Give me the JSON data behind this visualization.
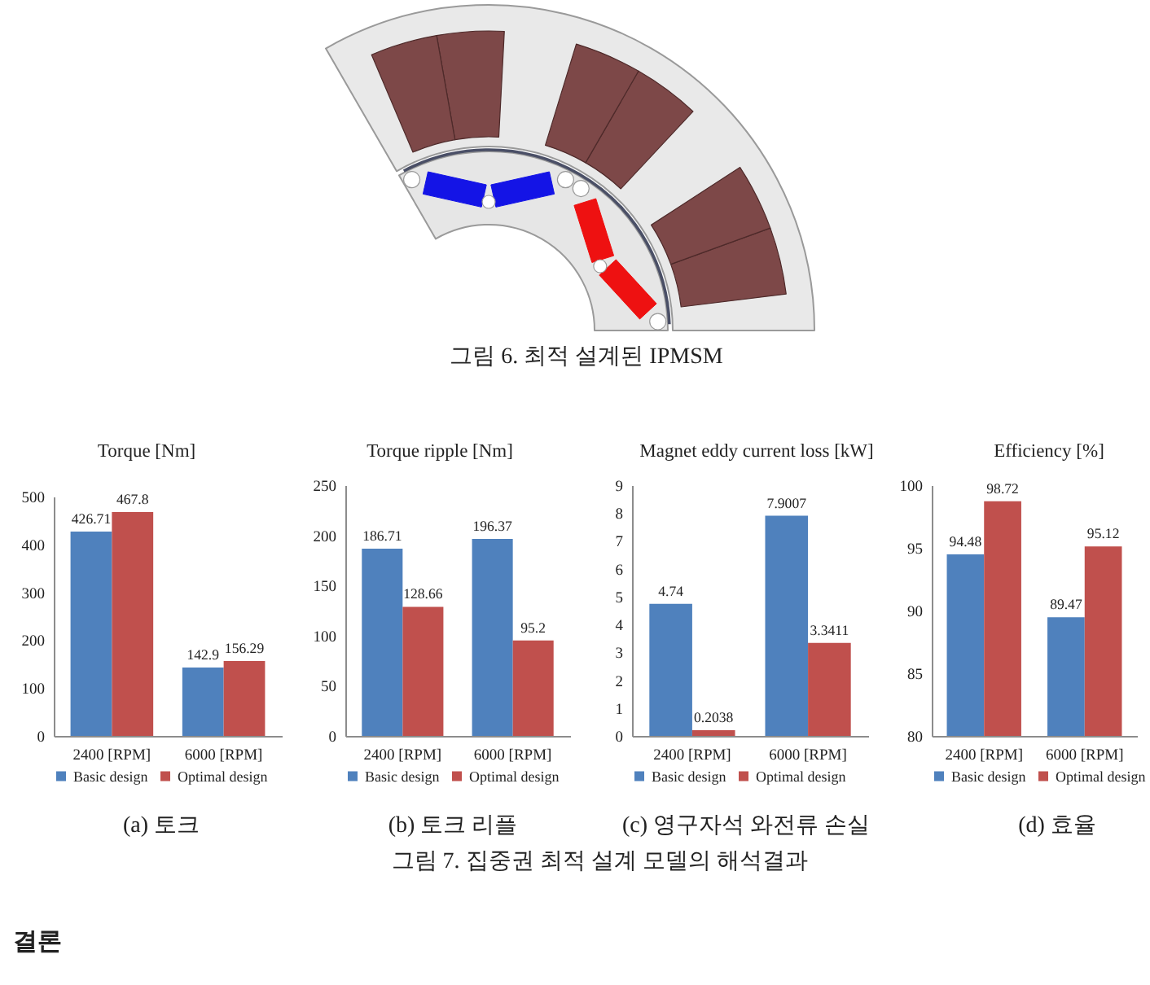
{
  "chart_data": [
    {
      "type": "other",
      "annotations": [
        "그림 6. 최적 설계된 IPMSM"
      ]
    },
    {
      "type": "bar",
      "title": "Torque [Nm]",
      "categories": [
        "2400 [RPM]",
        "6000 [RPM]"
      ],
      "series": [
        {
          "name": "Basic design",
          "color": "#4f81bd",
          "values": [
            426.71,
            142.9
          ]
        },
        {
          "name": "Optimal design",
          "color": "#c0504d",
          "values": [
            467.8,
            156.29
          ]
        }
      ],
      "ylim": [
        0,
        500
      ],
      "yticks": [
        0,
        100,
        200,
        300,
        400,
        500
      ],
      "data_labels": true,
      "legend": "bottom",
      "annotations": [
        "(a) 토크"
      ]
    },
    {
      "type": "bar",
      "title": "Torque ripple [Nm]",
      "categories": [
        "2400 [RPM]",
        "6000 [RPM]"
      ],
      "series": [
        {
          "name": "Basic design",
          "color": "#4f81bd",
          "values": [
            186.71,
            196.37
          ]
        },
        {
          "name": "Optimal design",
          "color": "#c0504d",
          "values": [
            128.66,
            95.2
          ]
        }
      ],
      "ylim": [
        0,
        250
      ],
      "yticks": [
        0,
        50,
        100,
        150,
        200,
        250
      ],
      "data_labels": true,
      "legend": "bottom",
      "annotations": [
        "(b) 토크 리플"
      ]
    },
    {
      "type": "bar",
      "title": "Magnet eddy current loss [kW]",
      "categories": [
        "2400 [RPM]",
        "6000 [RPM]"
      ],
      "series": [
        {
          "name": "Basic design",
          "color": "#4f81bd",
          "values": [
            4.74,
            7.9007
          ]
        },
        {
          "name": "Optimal design",
          "color": "#c0504d",
          "values": [
            0.2038,
            3.3411
          ]
        }
      ],
      "ylim": [
        0,
        9
      ],
      "yticks": [
        0,
        1,
        2,
        3,
        4,
        5,
        6,
        7,
        8,
        9
      ],
      "data_labels": true,
      "legend": "bottom",
      "annotations": [
        "(c) 영구자석 와전류 손실"
      ]
    },
    {
      "type": "bar",
      "title": "Efficiency [%]",
      "categories": [
        "2400 [RPM]",
        "6000 [RPM]"
      ],
      "series": [
        {
          "name": "Basic design",
          "color": "#4f81bd",
          "values": [
            94.48,
            89.47
          ]
        },
        {
          "name": "Optimal design",
          "color": "#c0504d",
          "values": [
            98.72,
            95.12
          ]
        }
      ],
      "ylim": [
        80,
        100
      ],
      "yticks": [
        80,
        85,
        90,
        95,
        100
      ],
      "data_labels": true,
      "legend": "bottom",
      "annotations": [
        "(d) 효율"
      ]
    },
    {
      "type": "other",
      "annotations": [
        "그림 7. 집중권 최적 설계 모델의 해석결과",
        "결론"
      ]
    }
  ]
}
